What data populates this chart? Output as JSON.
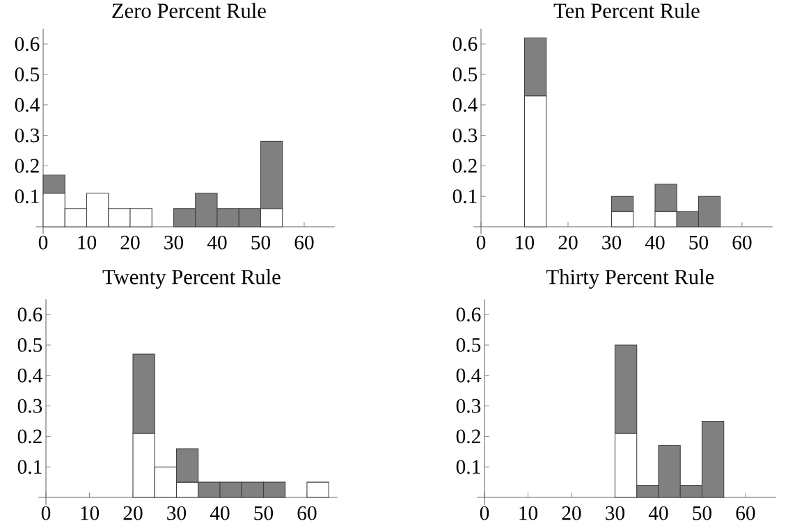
{
  "chart_data": [
    {
      "type": "bar",
      "title": "Zero Percent Rule",
      "x": [
        2.5,
        7.5,
        12.5,
        17.5,
        22.5,
        32.5,
        37.5,
        42.5,
        47.5,
        52.5
      ],
      "stacked": true,
      "series": [
        {
          "color": "#ffffff",
          "values": [
            0.11,
            0.06,
            0.11,
            0.06,
            0.06,
            null,
            null,
            null,
            null,
            0.06
          ]
        },
        {
          "color": "#808080",
          "values": [
            0.06,
            null,
            null,
            null,
            null,
            0.06,
            0.11,
            0.06,
            0.06,
            0.22
          ]
        }
      ],
      "xlim": [
        0,
        67
      ],
      "ylim": [
        0,
        0.65
      ],
      "xticks": [
        0,
        10,
        20,
        30,
        40,
        50,
        60
      ],
      "yticks": [
        0.1,
        0.2,
        0.3,
        0.4,
        0.5,
        0.6
      ]
    },
    {
      "type": "bar",
      "title": "Ten Percent Rule",
      "x": [
        12.5,
        32.5,
        42.5,
        47.5,
        52.5
      ],
      "stacked": true,
      "series": [
        {
          "color": "#ffffff",
          "values": [
            0.43,
            0.05,
            0.05,
            null,
            null
          ]
        },
        {
          "color": "#808080",
          "values": [
            0.19,
            0.05,
            0.09,
            0.05,
            0.1
          ]
        }
      ],
      "xlim": [
        0,
        67
      ],
      "ylim": [
        0,
        0.65
      ],
      "xticks": [
        0,
        10,
        20,
        30,
        40,
        50,
        60
      ],
      "yticks": [
        0.1,
        0.2,
        0.3,
        0.4,
        0.5,
        0.6
      ]
    },
    {
      "type": "bar",
      "title": "Twenty Percent Rule",
      "x": [
        22.5,
        27.5,
        32.5,
        37.5,
        42.5,
        47.5,
        52.5,
        62.5
      ],
      "stacked": true,
      "series": [
        {
          "color": "#ffffff",
          "values": [
            0.21,
            0.1,
            0.05,
            null,
            null,
            null,
            null,
            0.05
          ]
        },
        {
          "color": "#808080",
          "values": [
            0.26,
            null,
            0.11,
            0.05,
            0.05,
            0.05,
            0.05,
            null
          ]
        }
      ],
      "xlim": [
        0,
        67
      ],
      "ylim": [
        0,
        0.65
      ],
      "xticks": [
        0,
        10,
        20,
        30,
        40,
        50,
        60
      ],
      "yticks": [
        0.1,
        0.2,
        0.3,
        0.4,
        0.5,
        0.6
      ]
    },
    {
      "type": "bar",
      "title": "Thirty Percent Rule",
      "x": [
        32.5,
        37.5,
        42.5,
        47.5,
        52.5
      ],
      "stacked": true,
      "series": [
        {
          "color": "#ffffff",
          "values": [
            0.21,
            null,
            null,
            null,
            null
          ]
        },
        {
          "color": "#808080",
          "values": [
            0.29,
            0.04,
            0.17,
            0.04,
            0.25
          ]
        }
      ],
      "xlim": [
        0,
        67
      ],
      "ylim": [
        0,
        0.65
      ],
      "xticks": [
        0,
        10,
        20,
        30,
        40,
        50,
        60
      ],
      "yticks": [
        0.1,
        0.2,
        0.3,
        0.4,
        0.5,
        0.6
      ]
    }
  ]
}
